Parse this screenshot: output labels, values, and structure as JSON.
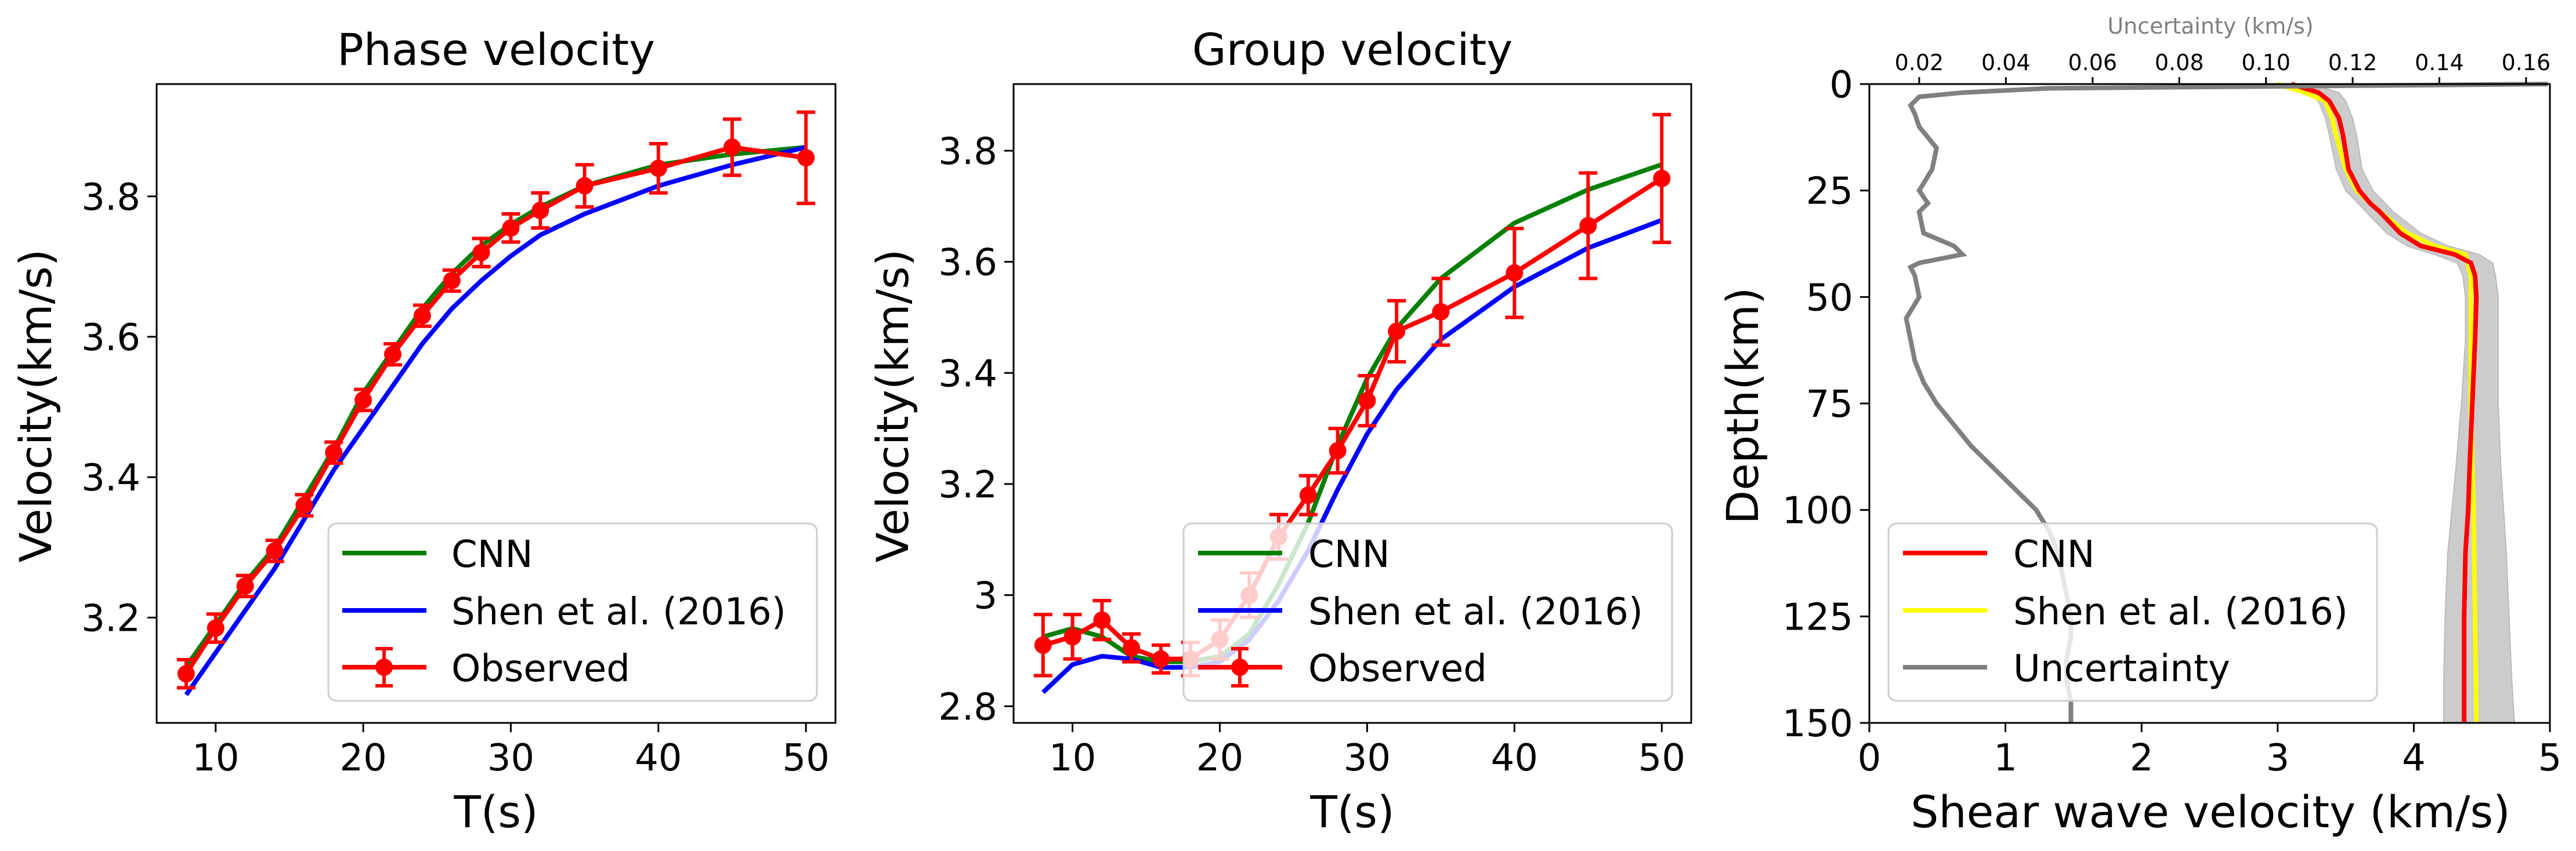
{
  "chart_data": [
    {
      "type": "line",
      "title": "Phase velocity",
      "xlabel": "T(s)",
      "ylabel": "Velocity(km/s)",
      "xlim": [
        6,
        52
      ],
      "ylim": [
        3.05,
        3.96
      ],
      "xticks": [
        10,
        20,
        30,
        40,
        50
      ],
      "yticks": [
        3.2,
        3.4,
        3.6,
        3.8
      ],
      "legend_position": "bottom-right",
      "series": [
        {
          "name": "CNN",
          "color": "#008000",
          "x": [
            8,
            10,
            12,
            14,
            16,
            18,
            20,
            22,
            24,
            26,
            28,
            30,
            32,
            35,
            40,
            45,
            50
          ],
          "y": [
            3.13,
            3.19,
            3.25,
            3.3,
            3.37,
            3.44,
            3.52,
            3.58,
            3.64,
            3.69,
            3.73,
            3.76,
            3.785,
            3.815,
            3.845,
            3.86,
            3.87
          ]
        },
        {
          "name": "Shen et al. (2016)",
          "color": "#0000ff",
          "x": [
            8,
            10,
            12,
            14,
            16,
            18,
            20,
            22,
            24,
            26,
            28,
            30,
            32,
            35,
            40,
            45,
            50
          ],
          "y": [
            3.09,
            3.15,
            3.21,
            3.27,
            3.34,
            3.41,
            3.47,
            3.53,
            3.59,
            3.64,
            3.68,
            3.715,
            3.745,
            3.775,
            3.815,
            3.845,
            3.87
          ]
        },
        {
          "name": "Observed",
          "color": "#ff0000",
          "x": [
            8,
            10,
            12,
            14,
            16,
            18,
            20,
            22,
            24,
            26,
            28,
            30,
            32,
            35,
            40,
            45,
            50
          ],
          "y": [
            3.12,
            3.185,
            3.245,
            3.295,
            3.36,
            3.435,
            3.51,
            3.575,
            3.63,
            3.68,
            3.72,
            3.755,
            3.78,
            3.815,
            3.84,
            3.87,
            3.855
          ],
          "err": [
            0.02,
            0.02,
            0.015,
            0.015,
            0.015,
            0.015,
            0.015,
            0.015,
            0.015,
            0.015,
            0.02,
            0.02,
            0.025,
            0.03,
            0.035,
            0.04,
            0.065
          ]
        }
      ]
    },
    {
      "type": "line",
      "title": "Group velocity",
      "xlabel": "T(s)",
      "ylabel": "Velocity(km/s)",
      "xlim": [
        6,
        52
      ],
      "ylim": [
        2.77,
        3.92
      ],
      "xticks": [
        10,
        20,
        30,
        40,
        50
      ],
      "yticks": [
        2.8,
        3.0,
        3.2,
        3.4,
        3.6,
        3.8
      ],
      "legend_position": "bottom-right",
      "series": [
        {
          "name": "CNN",
          "color": "#008000",
          "x": [
            8,
            10,
            12,
            14,
            16,
            18,
            20,
            22,
            24,
            26,
            28,
            30,
            32,
            35,
            40,
            45,
            50
          ],
          "y": [
            2.925,
            2.94,
            2.925,
            2.89,
            2.88,
            2.88,
            2.89,
            2.93,
            3.02,
            3.13,
            3.27,
            3.39,
            3.48,
            3.57,
            3.67,
            3.73,
            3.775
          ]
        },
        {
          "name": "Shen et al. (2016)",
          "color": "#0000ff",
          "x": [
            8,
            10,
            12,
            14,
            16,
            18,
            20,
            22,
            24,
            26,
            28,
            30,
            32,
            35,
            40,
            45,
            50
          ],
          "y": [
            2.825,
            2.875,
            2.89,
            2.885,
            2.87,
            2.87,
            2.88,
            2.92,
            2.99,
            3.08,
            3.19,
            3.29,
            3.37,
            3.46,
            3.555,
            3.625,
            3.675
          ]
        },
        {
          "name": "Observed",
          "color": "#ff0000",
          "x": [
            8,
            10,
            12,
            14,
            16,
            18,
            20,
            22,
            24,
            26,
            28,
            30,
            32,
            35,
            40,
            45,
            50
          ],
          "y": [
            2.91,
            2.925,
            2.955,
            2.905,
            2.885,
            2.885,
            2.92,
            3.0,
            3.105,
            3.18,
            3.26,
            3.35,
            3.475,
            3.51,
            3.58,
            3.665,
            3.75
          ],
          "err": [
            0.055,
            0.04,
            0.035,
            0.025,
            0.025,
            0.03,
            0.035,
            0.04,
            0.04,
            0.035,
            0.04,
            0.045,
            0.055,
            0.06,
            0.08,
            0.095,
            0.115
          ]
        }
      ]
    },
    {
      "type": "line",
      "xlabel": "Shear wave velocity (km/s)",
      "ylabel": "Depth(km)",
      "top_xlabel": "Uncertainty (km/s)",
      "xlim": [
        0,
        5
      ],
      "ylim": [
        150,
        0
      ],
      "top_xlim": [
        0.0085,
        0.1655
      ],
      "xticks": [
        0,
        1,
        2,
        3,
        4,
        5
      ],
      "yticks": [
        0,
        25,
        50,
        75,
        100,
        125,
        150
      ],
      "top_xticks": [
        0.02,
        0.04,
        0.06,
        0.08,
        0.1,
        0.12,
        0.14,
        0.16
      ],
      "top_xtick_labels": [
        "0.02",
        "0.04",
        "0.06",
        "0.08",
        "0.10",
        "0.12",
        "0.14",
        "0.16"
      ],
      "legend_position": "bottom-left",
      "series": [
        {
          "name": "CNN",
          "color": "#ff0000",
          "depth": [
            0,
            2,
            4,
            8,
            12,
            20,
            25,
            28,
            30,
            35,
            38,
            40,
            42,
            45,
            50,
            60,
            75,
            90,
            100,
            110,
            125,
            140,
            150
          ],
          "vs": [
            3.1,
            3.3,
            3.38,
            3.45,
            3.48,
            3.52,
            3.6,
            3.68,
            3.75,
            3.9,
            4.05,
            4.3,
            4.42,
            4.45,
            4.46,
            4.45,
            4.43,
            4.41,
            4.4,
            4.38,
            4.37,
            4.37,
            4.37
          ]
        },
        {
          "name": "Shen et al. (2016)",
          "color": "#ffff00",
          "depth": [
            0,
            2,
            4,
            8,
            12,
            20,
            25,
            30,
            35,
            38,
            40,
            45,
            50,
            60,
            75,
            90,
            100,
            125,
            150
          ],
          "vs": [
            3.0,
            3.2,
            3.35,
            3.4,
            3.43,
            3.5,
            3.58,
            3.75,
            3.95,
            4.15,
            4.38,
            4.42,
            4.42,
            4.42,
            4.42,
            4.43,
            4.44,
            4.45,
            4.46
          ]
        },
        {
          "name": "Uncertainty",
          "color": "#808080",
          "depth": [
            0,
            1,
            2,
            3,
            5,
            7,
            10,
            15,
            20,
            25,
            28,
            30,
            35,
            38,
            40,
            42,
            43,
            45,
            50,
            55,
            60,
            65,
            70,
            75,
            80,
            85,
            90,
            95,
            100,
            105,
            110,
            115,
            120,
            125,
            130,
            135,
            140,
            145,
            150
          ],
          "uncertainty": [
            0.165,
            0.05,
            0.03,
            0.02,
            0.018,
            0.019,
            0.02,
            0.024,
            0.023,
            0.02,
            0.022,
            0.02,
            0.021,
            0.028,
            0.03,
            0.02,
            0.018,
            0.019,
            0.02,
            0.017,
            0.018,
            0.019,
            0.021,
            0.024,
            0.028,
            0.032,
            0.037,
            0.042,
            0.047,
            0.05,
            0.052,
            0.053,
            0.054,
            0.055,
            0.055,
            0.054,
            0.054,
            0.055,
            0.055
          ]
        }
      ],
      "shaded_band": {
        "color": "#cccccc",
        "depth": [
          0,
          2,
          4,
          8,
          12,
          20,
          25,
          30,
          35,
          38,
          40,
          42,
          45,
          50,
          60,
          75,
          90,
          100,
          110,
          125,
          140,
          150
        ],
        "lower": [
          3.0,
          3.2,
          3.3,
          3.35,
          3.38,
          3.43,
          3.5,
          3.65,
          3.8,
          3.95,
          4.15,
          4.32,
          4.36,
          4.38,
          4.38,
          4.35,
          4.31,
          4.28,
          4.25,
          4.23,
          4.22,
          4.22
        ],
        "upper": [
          3.25,
          3.45,
          3.5,
          3.55,
          3.58,
          3.62,
          3.7,
          3.85,
          4.05,
          4.25,
          4.48,
          4.58,
          4.6,
          4.62,
          4.62,
          4.62,
          4.64,
          4.66,
          4.68,
          4.7,
          4.72,
          4.74
        ]
      }
    }
  ]
}
